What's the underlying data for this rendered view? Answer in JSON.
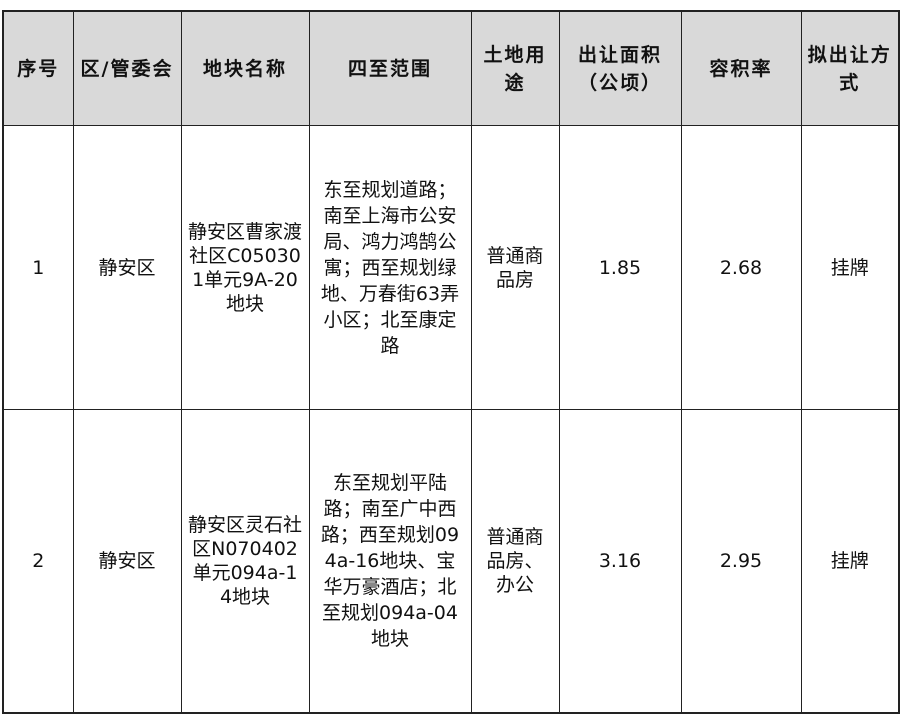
{
  "headers": [
    "序号",
    "区/管委会",
    "地块名称",
    "四至范围",
    "土地用途",
    "出让面积（公顷）",
    "容积率",
    "拟出让方式"
  ],
  "rows": [
    {
      "no": "1",
      "district": "静安区",
      "name": "静安区曹家渡社区C050301单元9A-20地块",
      "bounds": "东至规划道路；南至上海市公安局、鸿力鸿鹄公寓；西至规划绿地、万春街63弄小区；北至康定路",
      "use": "普通商品房",
      "area": "1.85",
      "far": "2.68",
      "method": "挂牌"
    },
    {
      "no": "2",
      "district": "静安区",
      "name": "静安区灵石社区N070402单元094a-14地块",
      "bounds": "东至规划平陆路；南至广中西路；西至规划094a-16地块、宝华万豪酒店；北至规划094a-04地块",
      "use": "普通商品房、办公",
      "area": "3.16",
      "far": "2.95",
      "method": "挂牌"
    }
  ]
}
